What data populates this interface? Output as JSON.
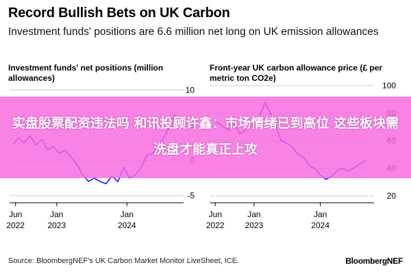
{
  "title": "Record Bullish Bets on UK Carbon",
  "subtitle": "Investment funds' positions are 6.6 million net long on UK emission allowances",
  "source": "Source: BloombergNEF's UK Carbon Market Monitor LiveSheet, ICE.",
  "brand": "BloombergNEF",
  "overlay_text": "实盘股票配资违法吗 和讯投顾许鑫：市场情绪已到高位 这些板块需洗盘才能真正上攻",
  "colors": {
    "line": "#1a1aff",
    "grid": "#cccccc"
  },
  "chart_data": [
    {
      "type": "line",
      "title": "Investment funds' net positions (million allowances)",
      "x_ticks": [
        [
          "Jun",
          "2022"
        ],
        [
          "Jan",
          "2023"
        ],
        [
          "Jan",
          "2024"
        ]
      ],
      "y_ticks": [
        10,
        5,
        0,
        -5
      ],
      "ylim": [
        -6,
        11
      ],
      "xlim": [
        "2022-05-01",
        "2024-09-30"
      ],
      "grid": true,
      "series": [
        {
          "x": [
            "2022-05-20",
            "2022-06-15",
            "2022-07-15",
            "2022-08-15",
            "2022-09-15",
            "2022-10-15",
            "2022-11-15",
            "2022-12-15",
            "2023-01-15",
            "2023-02-15",
            "2023-03-15",
            "2023-04-15",
            "2023-05-15",
            "2023-06-15",
            "2023-07-15",
            "2023-08-15",
            "2023-09-15",
            "2023-10-15",
            "2023-11-15",
            "2023-12-15",
            "2024-01-15",
            "2024-02-15",
            "2024-03-15",
            "2024-04-15",
            "2024-05-15",
            "2024-06-15",
            "2024-07-15",
            "2024-08-15",
            "2024-09-10"
          ],
          "y": [
            2.3,
            3.2,
            2.5,
            3.5,
            2.2,
            3.0,
            1.5,
            2.0,
            1.0,
            1.5,
            0.5,
            -0.5,
            -2.0,
            -3.0,
            -2.5,
            -3.0,
            -3.3,
            -2.2,
            -3.0,
            -1.0,
            -2.5,
            -2.0,
            -1.0,
            0.8,
            1.0,
            2.0,
            3.5,
            5.0,
            6.6
          ]
        }
      ]
    },
    {
      "type": "line",
      "title": "Front-year UK carbon allowance price (£ per metric ton CO2e)",
      "x_ticks": [
        [
          "Jun",
          "2022"
        ],
        [
          "Jan",
          "2023"
        ],
        [
          "Jan",
          "2024"
        ]
      ],
      "y_ticks": [
        100,
        80,
        60,
        40,
        20
      ],
      "ylim": [
        15,
        102
      ],
      "xlim": [
        "2022-05-01",
        "2024-09-30"
      ],
      "grid": true,
      "series": [
        {
          "x": [
            "2022-05-15",
            "2022-06-15",
            "2022-07-15",
            "2022-08-15",
            "2022-09-15",
            "2022-10-15",
            "2022-11-15",
            "2022-12-15",
            "2023-01-15",
            "2023-02-15",
            "2023-03-01",
            "2023-04-01",
            "2023-05-01",
            "2023-06-01",
            "2023-07-01",
            "2023-08-01",
            "2023-09-01",
            "2023-10-01",
            "2023-11-01",
            "2023-12-01",
            "2024-01-01",
            "2024-02-01",
            "2024-03-01",
            "2024-04-01",
            "2024-05-01",
            "2024-06-01",
            "2024-07-01",
            "2024-08-01",
            "2024-09-01",
            "2024-09-10"
          ],
          "y": [
            75,
            73,
            70,
            68,
            72,
            65,
            68,
            72,
            75,
            82,
            88,
            80,
            70,
            60,
            58,
            55,
            50,
            48,
            42,
            40,
            35,
            32,
            34,
            38,
            40,
            38,
            40,
            43,
            45,
            46
          ]
        }
      ]
    }
  ]
}
